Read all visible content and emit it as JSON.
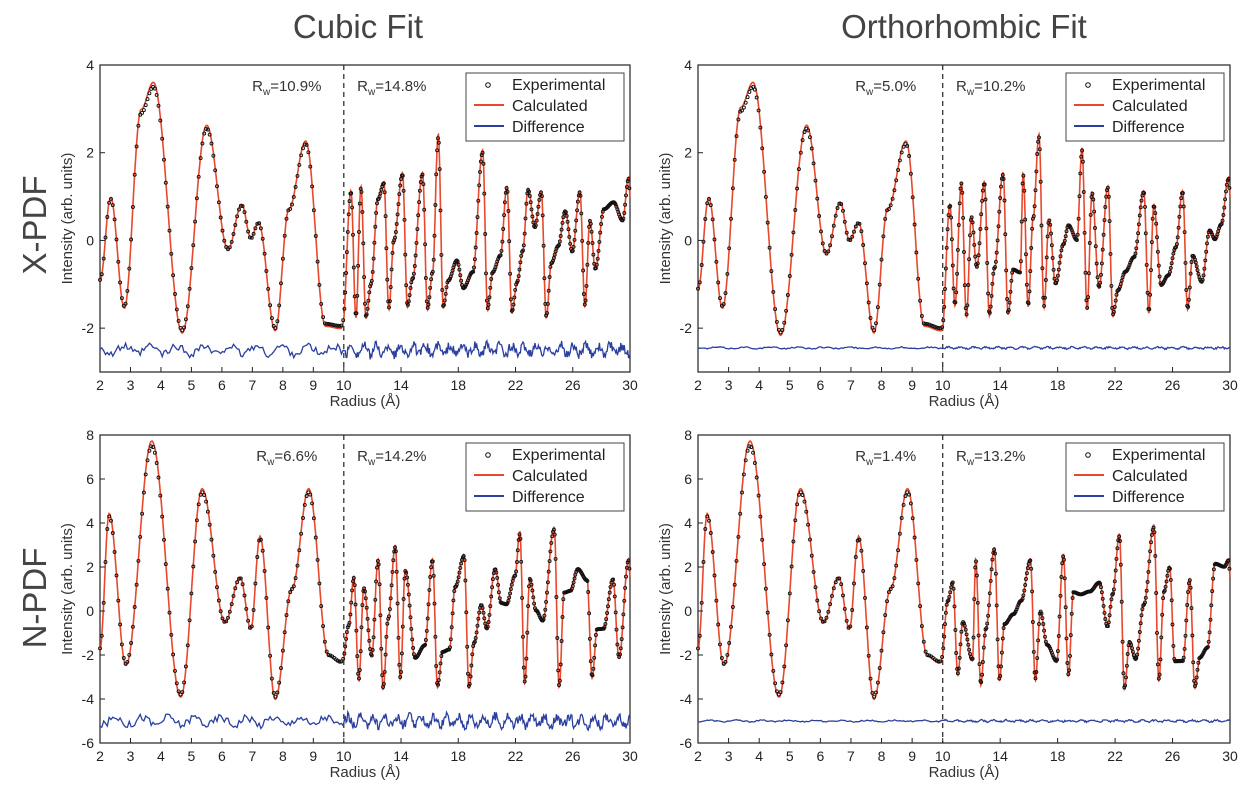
{
  "figure": {
    "column_titles": [
      "Cubic Fit",
      "Orthorhombic Fit"
    ],
    "row_titles": [
      "X-PDF",
      "N-PDF"
    ]
  },
  "legend": {
    "experimental": "Experimental",
    "calculated": "Calculated",
    "difference": "Difference"
  },
  "colors": {
    "experimental": "#111111",
    "calculated": "#e8482b",
    "difference": "#2b3f9e"
  },
  "chart_data": [
    {
      "type": "line",
      "row": "X-PDF",
      "column": "Cubic Fit",
      "xlabel": "Radius (Å)",
      "ylabel": "Intensity (arb. units)",
      "xlim": [
        2,
        30
      ],
      "x_split": 10,
      "ylim": [
        -3,
        4
      ],
      "x_ticks_left": [
        2,
        3,
        4,
        5,
        6,
        7,
        8,
        9,
        10
      ],
      "x_ticks_right": [
        14,
        18,
        22,
        26,
        30
      ],
      "y_ticks": [
        -2,
        0,
        2,
        4
      ],
      "rw_left": "10.9%",
      "rw_right": "14.8%",
      "difference_offset": -2.5,
      "peaks": [
        [
          2.35,
          0.95
        ],
        [
          3.35,
          2.9
        ],
        [
          3.75,
          3.5
        ],
        [
          5.5,
          2.55
        ],
        [
          6.65,
          0.8
        ],
        [
          7.2,
          0.4
        ],
        [
          8.2,
          0.7
        ],
        [
          8.75,
          2.2
        ]
      ],
      "valleys": [
        [
          2.0,
          -0.9
        ],
        [
          2.8,
          -1.5
        ],
        [
          4.7,
          -2.05
        ],
        [
          6.2,
          -0.2
        ],
        [
          6.95,
          0.05
        ],
        [
          7.75,
          -2.0
        ],
        [
          9.4,
          -1.9
        ],
        [
          9.9,
          -1.95
        ]
      ],
      "right_peaks": [
        [
          10.5,
          1.1
        ],
        [
          11.2,
          1.2
        ],
        [
          12.8,
          1.3
        ],
        [
          14.1,
          1.5
        ],
        [
          15.5,
          1.5
        ],
        [
          16.6,
          2.35
        ],
        [
          19.7,
          2.0
        ],
        [
          21.4,
          1.2
        ],
        [
          23.8,
          1.1
        ],
        [
          26.5,
          1.1
        ],
        [
          29.9,
          1.4
        ]
      ]
    },
    {
      "type": "line",
      "row": "X-PDF",
      "column": "Orthorhombic Fit",
      "xlabel": "Radius (Å)",
      "ylabel": "Intensity (arb. units)",
      "xlim": [
        2,
        30
      ],
      "x_split": 10,
      "ylim": [
        -3,
        4
      ],
      "x_ticks_left": [
        2,
        3,
        4,
        5,
        6,
        7,
        8,
        9,
        10
      ],
      "x_ticks_right": [
        14,
        18,
        22,
        26,
        30
      ],
      "y_ticks": [
        -2,
        0,
        2,
        4
      ],
      "rw_left": "5.0%",
      "rw_right": "10.2%",
      "difference_offset": -2.45,
      "peaks": [
        [
          2.35,
          0.95
        ],
        [
          3.4,
          2.95
        ],
        [
          3.8,
          3.5
        ],
        [
          5.55,
          2.55
        ],
        [
          6.65,
          0.85
        ],
        [
          7.25,
          0.4
        ],
        [
          8.2,
          0.7
        ],
        [
          8.8,
          2.2
        ]
      ],
      "valleys": [
        [
          2.0,
          -1.1
        ],
        [
          2.8,
          -1.5
        ],
        [
          4.7,
          -2.1
        ],
        [
          6.2,
          -0.3
        ],
        [
          6.95,
          0.0
        ],
        [
          7.75,
          -2.05
        ],
        [
          9.4,
          -1.9
        ],
        [
          9.95,
          -2.0
        ]
      ],
      "right_peaks": [
        [
          10.5,
          0.8
        ],
        [
          11.3,
          1.3
        ],
        [
          12.9,
          1.3
        ],
        [
          14.2,
          1.5
        ],
        [
          15.6,
          1.5
        ],
        [
          16.7,
          2.35
        ],
        [
          19.7,
          2.05
        ],
        [
          21.5,
          1.2
        ],
        [
          24.0,
          1.1
        ],
        [
          26.7,
          1.1
        ],
        [
          29.9,
          1.4
        ]
      ]
    },
    {
      "type": "line",
      "row": "N-PDF",
      "column": "Cubic Fit",
      "xlabel": "Radius (Å)",
      "ylabel": "Intensity (arb. units)",
      "xlim": [
        2,
        30
      ],
      "x_split": 10,
      "ylim": [
        -6,
        8
      ],
      "x_ticks_left": [
        2,
        3,
        4,
        5,
        6,
        7,
        8,
        9,
        10
      ],
      "x_ticks_right": [
        14,
        18,
        22,
        26,
        30
      ],
      "y_ticks": [
        -6,
        -4,
        -2,
        0,
        2,
        4,
        6,
        8
      ],
      "rw_left": "6.6%",
      "rw_right": "14.2%",
      "difference_offset": -5.0,
      "peaks": [
        [
          2.3,
          4.3
        ],
        [
          3.7,
          7.5
        ],
        [
          5.35,
          5.4
        ],
        [
          6.6,
          1.5
        ],
        [
          7.25,
          3.3
        ],
        [
          8.3,
          1.0
        ],
        [
          8.85,
          5.4
        ]
      ],
      "valleys": [
        [
          2.0,
          -1.7
        ],
        [
          2.85,
          -2.4
        ],
        [
          4.65,
          -3.8
        ],
        [
          6.1,
          -0.5
        ],
        [
          6.95,
          -0.8
        ],
        [
          7.75,
          -3.9
        ],
        [
          9.5,
          -2.0
        ],
        [
          9.9,
          -2.3
        ]
      ],
      "right_peaks": [
        [
          10.7,
          1.5
        ],
        [
          12.4,
          2.3
        ],
        [
          13.6,
          2.9
        ],
        [
          16.2,
          2.3
        ],
        [
          18.4,
          2.5
        ],
        [
          22.3,
          3.5
        ],
        [
          24.7,
          3.7
        ],
        [
          27.0,
          1.4
        ],
        [
          29.9,
          2.3
        ]
      ]
    },
    {
      "type": "line",
      "row": "N-PDF",
      "column": "Orthorhombic Fit",
      "xlabel": "Radius (Å)",
      "ylabel": "Intensity (arb. units)",
      "xlim": [
        2,
        30
      ],
      "x_split": 10,
      "ylim": [
        -6,
        8
      ],
      "x_ticks_left": [
        2,
        3,
        4,
        5,
        6,
        7,
        8,
        9,
        10
      ],
      "x_ticks_right": [
        14,
        18,
        22,
        26,
        30
      ],
      "y_ticks": [
        -6,
        -4,
        -2,
        0,
        2,
        4,
        6,
        8
      ],
      "rw_left": "1.4%",
      "rw_right": "13.2%",
      "difference_offset": -5.0,
      "peaks": [
        [
          2.3,
          4.3
        ],
        [
          3.7,
          7.5
        ],
        [
          5.35,
          5.4
        ],
        [
          6.6,
          1.5
        ],
        [
          7.25,
          3.3
        ],
        [
          8.3,
          1.0
        ],
        [
          8.85,
          5.4
        ]
      ],
      "valleys": [
        [
          2.0,
          -1.7
        ],
        [
          2.85,
          -2.4
        ],
        [
          4.65,
          -3.8
        ],
        [
          6.1,
          -0.5
        ],
        [
          6.95,
          -0.8
        ],
        [
          7.75,
          -3.9
        ],
        [
          9.5,
          -2.0
        ],
        [
          9.9,
          -2.3
        ]
      ],
      "right_peaks": [
        [
          10.7,
          1.3
        ],
        [
          12.3,
          2.3
        ],
        [
          13.6,
          2.8
        ],
        [
          16.1,
          2.3
        ],
        [
          18.4,
          2.5
        ],
        [
          22.3,
          3.4
        ],
        [
          24.7,
          3.8
        ],
        [
          27.2,
          1.4
        ],
        [
          29.9,
          2.3
        ]
      ]
    }
  ]
}
